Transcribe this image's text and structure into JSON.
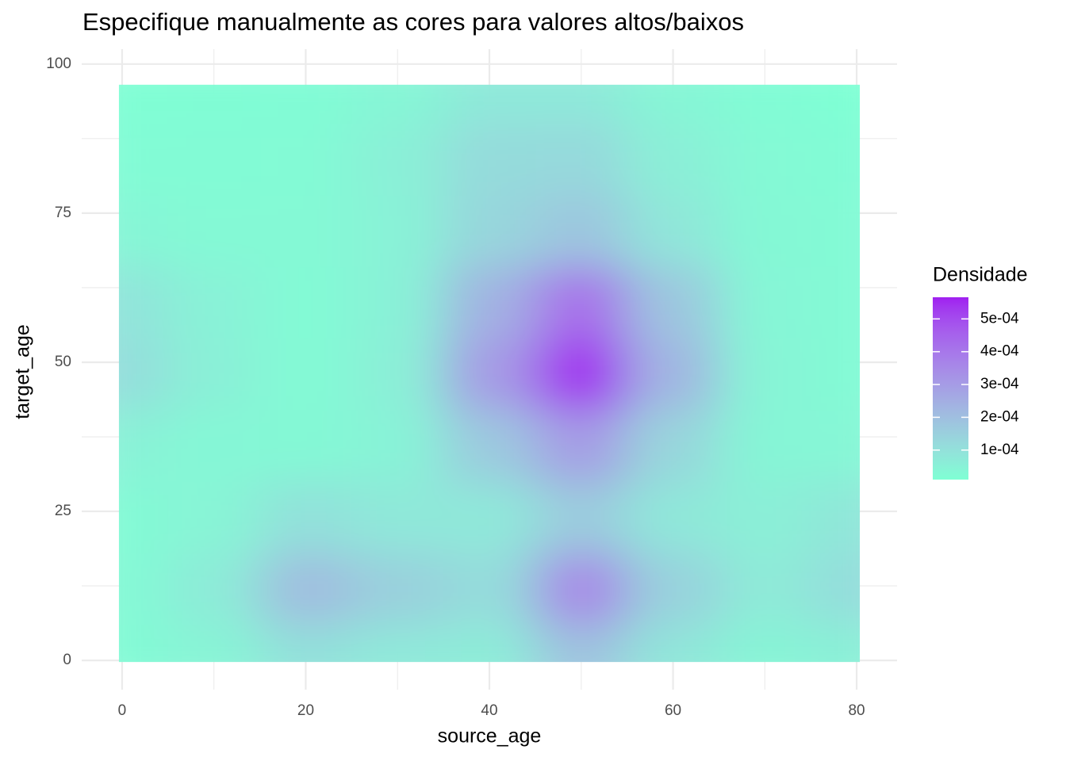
{
  "chart_data": {
    "type": "raster",
    "title": "Especifique manualmente as cores para valores altos/baixos",
    "x_label": "source_age",
    "y_label": "target_age",
    "x": [
      0,
      10,
      20,
      30,
      40,
      50,
      60,
      70,
      80
    ],
    "y": [
      0,
      12,
      24,
      36,
      48,
      60,
      72,
      84,
      96
    ],
    "z": [
      [
        2.6e-05,
        4.4e-05,
        9.8e-05,
        7.7e-05,
        6.8e-05,
        0.000185,
        8.5e-05,
        4.2e-05,
        5.4e-05
      ],
      [
        2.7e-05,
        7.1e-05,
        0.000202,
        0.000151,
        0.000114,
        0.000346,
        0.000146,
        7.3e-05,
        0.000111
      ],
      [
        2.6e-05,
        4.4e-05,
        9.8e-05,
        7.9e-05,
        8e-05,
        0.000162,
        8.1e-05,
        5.9e-05,
        8.5e-05
      ],
      [
        5e-05,
        3.4e-05,
        3e-05,
        4.5e-05,
        0.000171,
        0.000298,
        0.000133,
        3.9e-05,
        3.5e-05
      ],
      [
        0.000108,
        5.6e-05,
        2.6e-05,
        5.7e-05,
        0.000303,
        0.000545,
        0.00023,
        4.2e-05,
        2.5e-05
      ],
      [
        9.1e-05,
        4.9e-05,
        2.5e-05,
        5.2e-05,
        0.000238,
        0.000414,
        0.000178,
        3.7e-05,
        2.5e-05
      ],
      [
        3.7e-05,
        2.9e-05,
        2.7e-05,
        4.9e-05,
        0.000131,
        0.00018,
        8.4e-05,
        3e-05,
        2.5e-05
      ],
      [
        2e-05,
        2.2e-05,
        2.6e-05,
        5.5e-05,
        0.000117,
        0.000122,
        5.9e-05,
        2.7e-05,
        1.8e-05
      ],
      [
        1.2e-05,
        1.5e-05,
        1.8e-05,
        3.7e-05,
        7.6e-05,
        7.6e-05,
        3.7e-05,
        1.8e-05,
        1e-05
      ]
    ],
    "xlim": [
      -4.4,
      84.4
    ],
    "ylim": [
      -4.9,
      102.5
    ],
    "xticks": [
      0,
      20,
      40,
      60,
      80
    ],
    "yticks": [
      0,
      25,
      50,
      75,
      100
    ],
    "x_minor_ticks": [
      10,
      30,
      50,
      70
    ],
    "y_minor_ticks": [
      12.5,
      37.5,
      62.5,
      87.5
    ],
    "grid": true,
    "colorbar": {
      "title": "Densidade",
      "low": "#7FFFD4",
      "high": "#A020F0",
      "zlim": [
        1e-05,
        0.000566
      ],
      "ticks": [
        {
          "value": 0.0001,
          "label": "1e-04"
        },
        {
          "value": 0.0002,
          "label": "2e-04"
        },
        {
          "value": 0.0003,
          "label": "3e-04"
        },
        {
          "value": 0.0004,
          "label": "4e-04"
        },
        {
          "value": 0.0005,
          "label": "5e-04"
        }
      ]
    }
  }
}
